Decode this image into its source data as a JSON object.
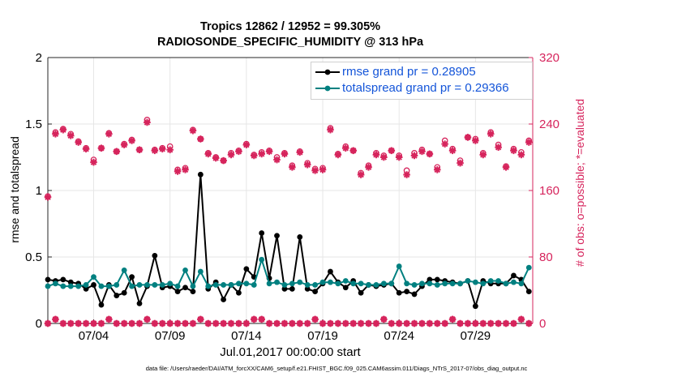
{
  "title_line1": "Tropics 12862 / 12952 = 99.305%",
  "title_line2": "RADIOSONDE_SPECIFIC_HUMIDITY @ 313 hPa",
  "footer": "data file: /Users/raeder/DAI/ATM_forcXX/CAM6_setup/f.e21.FHIST_BGC.f09_025.CAM6assim.011/Diags_NTrS_2017-07/obs_diag_output.nc",
  "colors": {
    "rmse": "#000000",
    "spread": "#008080",
    "obs": "#d6245c",
    "legend_text": "#1455d9",
    "grid": "#e6e6e6"
  },
  "chart_data": {
    "type": "line",
    "xlabel": "Jul.01,2017 00:00:00 start",
    "ylabel": "rmse and totalspread",
    "ylabel_right": "# of obs: o=possible; *=evaluated",
    "ylim": [
      0,
      2
    ],
    "ylim_right": [
      0,
      320
    ],
    "xlim": [
      0,
      31.75
    ],
    "yticks": [
      0,
      0.5,
      1,
      1.5,
      2
    ],
    "ytick_labels": [
      "0",
      "0.5",
      "1",
      "1.5",
      "2"
    ],
    "yticks_right": [
      0,
      80,
      160,
      240,
      320
    ],
    "ytick_labels_right": [
      "0",
      "80",
      "160",
      "240",
      "320"
    ],
    "xticks": [
      3,
      8,
      13,
      18,
      23,
      28
    ],
    "xtick_labels": [
      "07/04",
      "07/09",
      "07/14",
      "07/19",
      "07/24",
      "07/29"
    ],
    "grid": true,
    "legend_position": "top-right",
    "x": [
      0.0,
      0.5,
      1.0,
      1.5,
      2.0,
      2.5,
      3.0,
      3.5,
      4.0,
      4.5,
      5.0,
      5.5,
      6.0,
      6.5,
      7.0,
      7.5,
      8.0,
      8.5,
      9.0,
      9.5,
      10.0,
      10.5,
      11.0,
      11.5,
      12.0,
      12.5,
      13.0,
      13.5,
      14.0,
      14.5,
      15.0,
      15.5,
      16.0,
      16.5,
      17.0,
      17.5,
      18.0,
      18.5,
      19.0,
      19.5,
      20.0,
      20.5,
      21.0,
      21.5,
      22.0,
      22.5,
      23.0,
      23.5,
      24.0,
      24.5,
      25.0,
      25.5,
      26.0,
      26.5,
      27.0,
      27.5,
      28.0,
      28.5,
      29.0,
      29.5,
      30.0,
      30.5,
      31.0,
      31.5
    ],
    "series": [
      {
        "name": "rmse grand pr = 0.28905",
        "color": "#000000",
        "values": [
          0.33,
          0.32,
          0.33,
          0.31,
          0.3,
          0.26,
          0.29,
          0.14,
          0.29,
          0.21,
          0.23,
          0.35,
          0.15,
          0.28,
          0.51,
          0.27,
          0.28,
          0.24,
          0.27,
          0.24,
          1.12,
          0.26,
          0.31,
          0.18,
          0.29,
          0.23,
          0.41,
          0.35,
          0.68,
          0.34,
          0.66,
          0.26,
          0.26,
          0.65,
          0.26,
          0.24,
          0.3,
          0.39,
          0.31,
          0.27,
          0.32,
          0.23,
          0.29,
          0.28,
          0.29,
          0.3,
          0.23,
          0.24,
          0.22,
          0.28,
          0.33,
          0.33,
          0.32,
          0.31,
          0.3,
          0.32,
          0.13,
          0.32,
          0.3,
          0.3,
          0.3,
          0.36,
          0.33,
          0.24
        ]
      },
      {
        "name": "totalspread grand pr = 0.29366",
        "color": "#008080",
        "values": [
          0.28,
          0.3,
          0.28,
          0.28,
          0.28,
          0.29,
          0.35,
          0.28,
          0.28,
          0.29,
          0.4,
          0.28,
          0.29,
          0.29,
          0.29,
          0.29,
          0.3,
          0.28,
          0.4,
          0.28,
          0.39,
          0.28,
          0.29,
          0.29,
          0.29,
          0.3,
          0.3,
          0.29,
          0.48,
          0.3,
          0.31,
          0.29,
          0.3,
          0.31,
          0.29,
          0.29,
          0.31,
          0.31,
          0.3,
          0.32,
          0.3,
          0.3,
          0.29,
          0.29,
          0.3,
          0.3,
          0.43,
          0.3,
          0.29,
          0.3,
          0.3,
          0.29,
          0.3,
          0.3,
          0.3,
          0.32,
          0.31,
          0.3,
          0.32,
          0.32,
          0.3,
          0.31,
          0.3,
          0.42
        ]
      },
      {
        "name": "possible obs",
        "marker": "o",
        "axis": "right",
        "values": [
          153,
          230,
          234,
          228,
          219,
          211,
          197,
          211,
          229,
          207,
          216,
          221,
          209,
          245,
          209,
          211,
          213,
          185,
          187,
          233,
          222,
          205,
          200,
          196,
          205,
          208,
          216,
          203,
          206,
          208,
          200,
          205,
          190,
          207,
          193,
          186,
          187,
          235,
          204,
          213,
          208,
          181,
          190,
          205,
          202,
          208,
          202,
          184,
          205,
          209,
          204,
          188,
          220,
          210,
          196,
          224,
          222,
          205,
          230,
          215,
          189,
          210,
          206,
          220
        ],
        "evaluated": [
          152,
          228,
          233,
          226,
          218,
          210,
          194,
          211,
          228,
          207,
          215,
          220,
          209,
          242,
          208,
          210,
          209,
          183,
          185,
          232,
          222,
          204,
          199,
          196,
          203,
          207,
          215,
          202,
          204,
          207,
          197,
          204,
          188,
          206,
          191,
          184,
          185,
          233,
          203,
          211,
          208,
          179,
          188,
          203,
          200,
          208,
          200,
          179,
          202,
          207,
          204,
          185,
          216,
          208,
          193,
          224,
          220,
          203,
          228,
          212,
          188,
          208,
          203,
          218
        ]
      },
      {
        "name": "rejected obs",
        "marker": "o",
        "axis": "right",
        "values": [
          0,
          5,
          0,
          0,
          0,
          0,
          0,
          0,
          5,
          0,
          0,
          0,
          0,
          5,
          0,
          0,
          0,
          0,
          0,
          0,
          5,
          0,
          0,
          0,
          0,
          0,
          0,
          5,
          5,
          0,
          0,
          0,
          0,
          0,
          0,
          5,
          0,
          0,
          0,
          0,
          0,
          0,
          0,
          0,
          5,
          0,
          0,
          0,
          0,
          0,
          0,
          0,
          0,
          5,
          0,
          0,
          0,
          0,
          0,
          0,
          0,
          0,
          5,
          0
        ]
      }
    ],
    "legend": [
      "rmse grand pr = 0.28905",
      "totalspread grand pr = 0.29366"
    ]
  }
}
